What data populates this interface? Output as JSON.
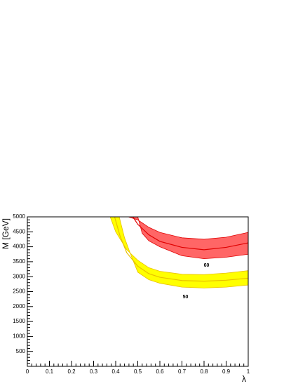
{
  "chart_data": {
    "type": "band",
    "x_label": "λ",
    "y_label": "M [GeV]",
    "xlim": [
      0,
      1
    ],
    "xticks": [
      0,
      0.1,
      0.2,
      0.3,
      0.4,
      0.5,
      0.6,
      0.7,
      0.8,
      0.9,
      1
    ],
    "ylim": [
      0,
      5000
    ],
    "yticks": [
      500,
      1000,
      1500,
      2000,
      2500,
      3000,
      3500,
      4000,
      4500,
      5000
    ],
    "bands": [
      {
        "label": "50",
        "fill": "#ffff00",
        "line_color": "#e8c000",
        "center": {
          "x": [
            0.395,
            0.42,
            0.45,
            0.5,
            0.55,
            0.6,
            0.7,
            0.8,
            0.9,
            1.0
          ],
          "values": [
            5000,
            4350,
            3800,
            3350,
            3100,
            2980,
            2870,
            2850,
            2880,
            2950
          ]
        },
        "upper": {
          "x": [
            0.375,
            0.4,
            0.45,
            0.5,
            0.55,
            0.6,
            0.7,
            0.8,
            0.9,
            1.0
          ],
          "values": [
            5000,
            4500,
            3900,
            3550,
            3300,
            3180,
            3080,
            3070,
            3120,
            3200
          ]
        },
        "lower": {
          "x": [
            0.416,
            0.44,
            0.47,
            0.5,
            0.55,
            0.6,
            0.7,
            0.8,
            0.9,
            1.0
          ],
          "values": [
            5000,
            4300,
            3700,
            3150,
            2900,
            2780,
            2650,
            2620,
            2650,
            2720
          ]
        }
      },
      {
        "label": "60",
        "fill": "#ff6666",
        "line_color": "#e00000",
        "center": {
          "x": [
            0.478,
            0.5,
            0.55,
            0.6,
            0.7,
            0.8,
            0.9,
            1.0
          ],
          "values": [
            5000,
            4750,
            4400,
            4180,
            3980,
            3900,
            3980,
            4130
          ]
        },
        "upper": {
          "x": [
            0.457,
            0.5,
            0.55,
            0.6,
            0.7,
            0.8,
            0.9,
            1.0
          ],
          "values": [
            5000,
            4900,
            4650,
            4480,
            4300,
            4250,
            4320,
            4480
          ]
        },
        "lower": {
          "x": [
            0.5,
            0.52,
            0.55,
            0.6,
            0.7,
            0.8,
            0.9,
            1.0
          ],
          "values": [
            5000,
            4450,
            4200,
            4000,
            3700,
            3600,
            3650,
            3750
          ]
        }
      }
    ]
  }
}
